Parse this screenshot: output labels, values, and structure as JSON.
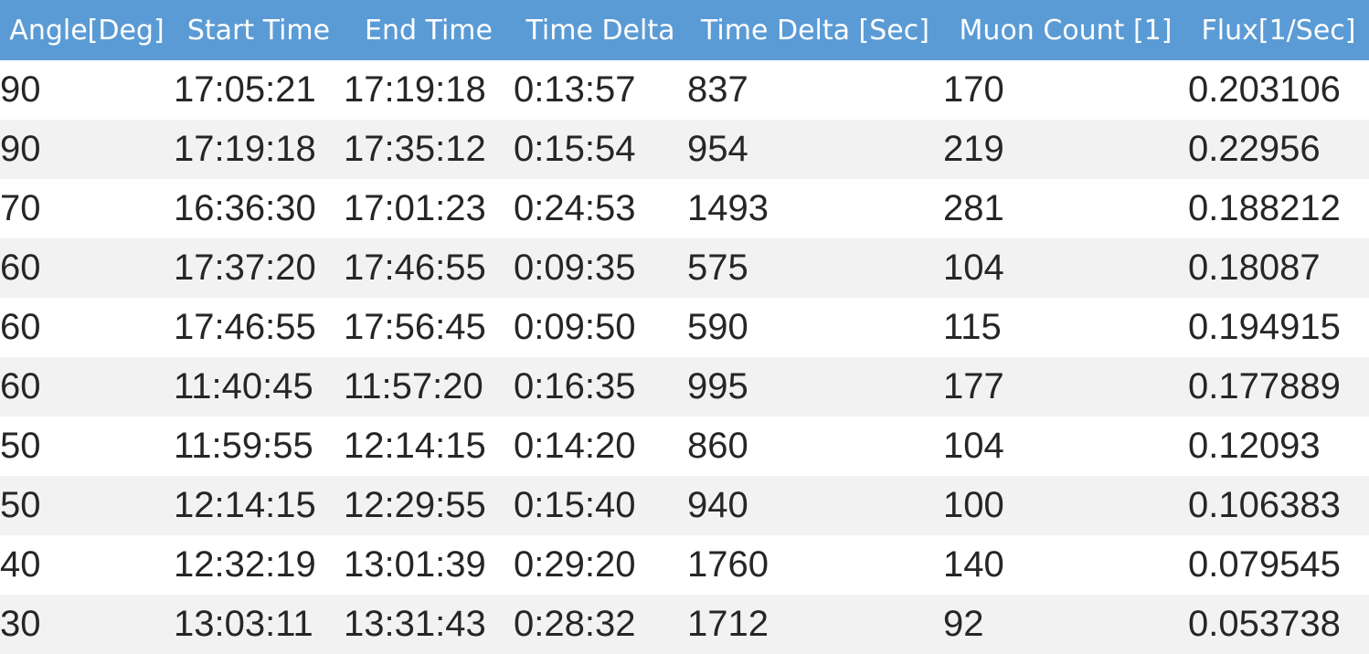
{
  "table": {
    "columns": [
      "Angle[Deg]",
      "Start Time",
      "End Time",
      "Time Delta",
      "Time Delta [Sec]",
      "Muon Count [1]",
      "Flux[1/Sec]"
    ],
    "rows": [
      [
        "90",
        "17:05:21",
        "17:19:18",
        "0:13:57",
        "837",
        "170",
        "0.203106"
      ],
      [
        "90",
        "17:19:18",
        "17:35:12",
        "0:15:54",
        "954",
        "219",
        "0.22956"
      ],
      [
        "70",
        "16:36:30",
        "17:01:23",
        "0:24:53",
        "1493",
        "281",
        "0.188212"
      ],
      [
        "60",
        "17:37:20",
        "17:46:55",
        "0:09:35",
        "575",
        "104",
        "0.18087"
      ],
      [
        "60",
        "17:46:55",
        "17:56:45",
        "0:09:50",
        "590",
        "115",
        "0.194915"
      ],
      [
        "60",
        "11:40:45",
        "11:57:20",
        "0:16:35",
        "995",
        "177",
        "0.177889"
      ],
      [
        "50",
        "11:59:55",
        "12:14:15",
        "0:14:20",
        "860",
        "104",
        "0.12093"
      ],
      [
        "50",
        "12:14:15",
        "12:29:55",
        "0:15:40",
        "940",
        "100",
        "0.106383"
      ],
      [
        "40",
        "12:32:19",
        "13:01:39",
        "0:29:20",
        "1760",
        "140",
        "0.079545"
      ],
      [
        "30",
        "13:03:11",
        "13:31:43",
        "0:28:32",
        "1712",
        "92",
        "0.053738"
      ]
    ]
  },
  "colors": {
    "header_background": "#5b9bd5",
    "header_text": "#ffffff",
    "band_row": "#f2f2f2",
    "plain_row": "#ffffff",
    "cell_text": "#262626"
  }
}
